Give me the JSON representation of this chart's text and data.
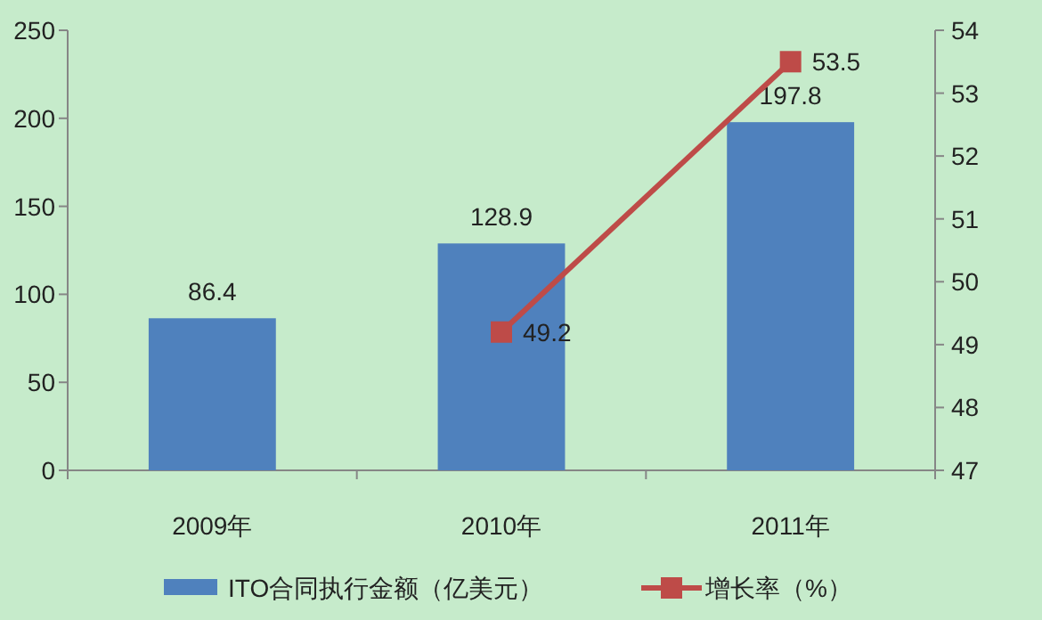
{
  "chart_data": {
    "type": "bar",
    "categories": [
      "2009年",
      "2010年",
      "2011年"
    ],
    "series": [
      {
        "name": "ITO合同执行金额（亿美元）",
        "color": "#4f81bd",
        "values": [
          86.4,
          128.9,
          197.8
        ]
      },
      {
        "name": "增长率（%）",
        "color": "#be4b48",
        "type": "line",
        "axis": "y2",
        "values": [
          null,
          49.2,
          53.5
        ]
      }
    ],
    "ylim": [
      0,
      250
    ],
    "yticks": [
      0,
      50,
      100,
      150,
      200,
      250
    ],
    "y2lim": [
      47,
      54
    ],
    "y2ticks": [
      47,
      48,
      49,
      50,
      51,
      52,
      53,
      54
    ],
    "data_labels": true,
    "legend": "bottom",
    "marker": "square"
  }
}
